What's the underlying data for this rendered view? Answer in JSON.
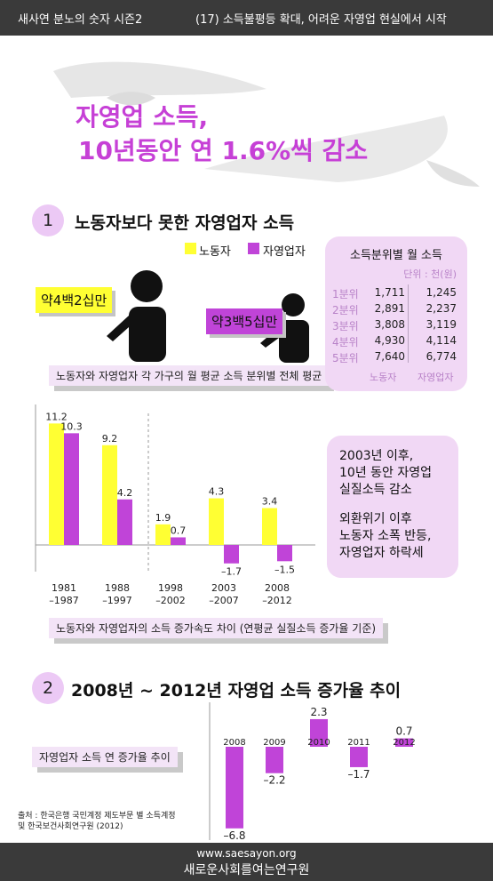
{
  "header": {
    "series": "새사연 분노의 숫자 시즌2",
    "episode": "(17) 소득불평등 확대, 어려운 자영업 현실에서 시작"
  },
  "headline": {
    "line1": "자영업 소득,",
    "line2": "10년동안 연 1.6%씩 감소"
  },
  "section1": {
    "number": "1",
    "title": "노동자보다 못한 자영업자 소득"
  },
  "legend": {
    "worker": "노동자",
    "self": "자영업자"
  },
  "colors": {
    "worker": "#ffff33",
    "self": "#c044d8",
    "accent": "#c640d6"
  },
  "income": {
    "worker_label": "약4백2십만",
    "self_label": "약3백5십만",
    "caption": "노동자와 자영업자 각 가구의 월 평균 소득 분위별 전체 평균"
  },
  "quintile_table": {
    "title": "소득분위별 월 소득",
    "unit": "단위 : 천(원)",
    "rows": [
      {
        "label": "1분위",
        "worker": "1,711",
        "self": "1,245"
      },
      {
        "label": "2분위",
        "worker": "2,891",
        "self": "2,237"
      },
      {
        "label": "3분위",
        "worker": "3,808",
        "self": "3,119"
      },
      {
        "label": "4분위",
        "worker": "4,930",
        "self": "4,114"
      },
      {
        "label": "5분위",
        "worker": "7,640",
        "self": "6,774"
      }
    ],
    "col_worker": "노동자",
    "col_self": "자영업자"
  },
  "note1": {
    "l1": "2003년 이후,",
    "l2": "10년 동안 자영업",
    "l3": "실질소득 감소",
    "l4": "외환위기 이후",
    "l5": "노동자 소폭 반등,",
    "l6": "자영업자 하락세"
  },
  "chart1_caption": "노동자와 자영업자의 소득 증가속도 차이 (연평균 실질소득 증가율 기준)",
  "section2": {
    "number": "2",
    "title": "2008년 ~ 2012년 자영업 소득 증가율 추이"
  },
  "chart2_caption": "자영업자 소득 연 증가율 추이",
  "source": {
    "l1": "출처 : 한국은행 국민계정 제도부문 별 소득계정",
    "l2": "및 한국보건사회연구원 (2012)"
  },
  "footer": {
    "url": "www.saesayon.org",
    "org": "새로운사회를여는연구원"
  },
  "chart_data": [
    {
      "type": "bar",
      "categories": [
        [
          "1981",
          "–1987"
        ],
        [
          "1988",
          "–1997"
        ],
        [
          "1998",
          "–2002"
        ],
        [
          "2003",
          "–2007"
        ],
        [
          "2008",
          "–2012"
        ]
      ],
      "series": [
        {
          "name": "노동자",
          "values": [
            11.2,
            9.2,
            1.9,
            4.3,
            3.4
          ],
          "labels": [
            "11.2",
            "9.2",
            "1.9",
            "4.3",
            "3.4"
          ]
        },
        {
          "name": "자영업자",
          "values": [
            10.3,
            4.2,
            0.7,
            -1.7,
            -1.5
          ],
          "labels": [
            "10.3",
            "4.2",
            "0.7",
            "–1.7",
            "–1.5"
          ]
        }
      ],
      "ylim": [
        -2.5,
        12.5
      ]
    },
    {
      "type": "bar",
      "categories": [
        "2008",
        "2009",
        "2010",
        "2011",
        "2012"
      ],
      "values": [
        -6.8,
        -2.2,
        2.3,
        -1.7,
        0.7
      ],
      "labels": [
        "–6.8",
        "–2.2",
        "2.3",
        "–1.7",
        "0.7"
      ],
      "ylim": [
        -7,
        3
      ]
    }
  ]
}
